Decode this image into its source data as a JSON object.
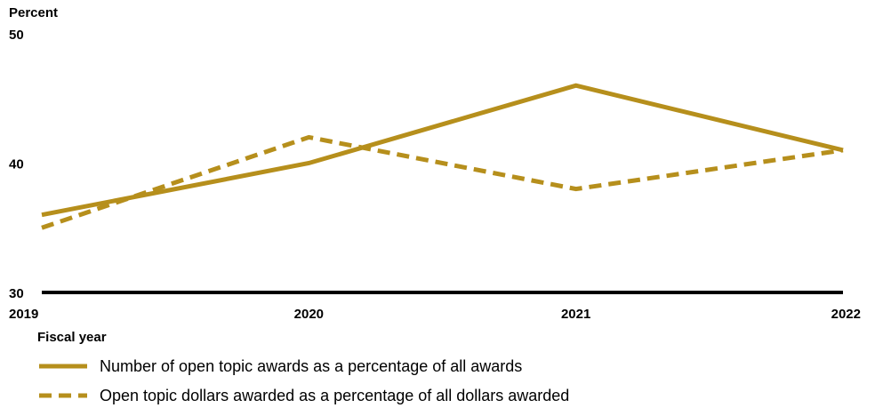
{
  "chart_data": {
    "type": "line",
    "ylabel": "Percent",
    "xlabel": "Fiscal year",
    "x": [
      "2019",
      "2020",
      "2021",
      "2022"
    ],
    "ylim": [
      30,
      50
    ],
    "yticks": [
      "30",
      "40",
      "50"
    ],
    "grid": false,
    "legend_position": "bottom-left",
    "series": [
      {
        "name": "Number of open topic awards as a percentage of all awards",
        "values": [
          36,
          40,
          46,
          41
        ],
        "style": "solid",
        "color": "#b68f1c"
      },
      {
        "name": "Open topic dollars awarded as a percentage of all dollars awarded",
        "values": [
          35,
          42,
          38,
          41
        ],
        "style": "dashed",
        "color": "#b68f1c"
      }
    ]
  }
}
